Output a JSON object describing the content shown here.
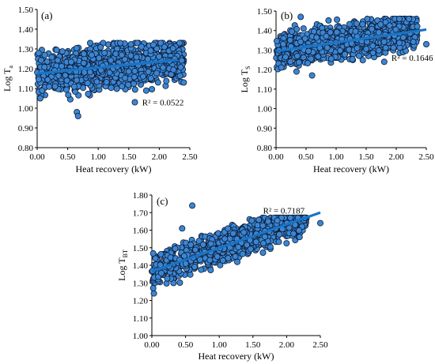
{
  "chart_data": [
    {
      "panel_label": "(a)",
      "type": "scatter",
      "xlabel": "Heat recovery (kW)",
      "ylabel": {
        "main": "Log T",
        "sub": "a"
      },
      "xlim": [
        0,
        2.5
      ],
      "ylim": [
        0.8,
        1.5
      ],
      "xticks": [
        "0.00",
        "0.50",
        "1.00",
        "1.50",
        "2.00",
        "2.50"
      ],
      "yticks": [
        "0.80",
        "0.90",
        "1.00",
        "1.10",
        "1.20",
        "1.30",
        "1.40",
        "1.50"
      ],
      "trendline": {
        "x": [
          0,
          2.3
        ],
        "y": [
          1.175,
          1.245
        ]
      },
      "r2_label": "R² = 0.0522",
      "r2_at": [
        1.72,
        1.015
      ],
      "series_spec": {
        "n": 950,
        "xmax": 2.4,
        "center_start": 1.175,
        "slope": 0.03,
        "spread": 0.055,
        "ymin": 1.02,
        "ymax": 1.33
      },
      "outliers": [
        [
          0.65,
          0.98
        ],
        [
          0.67,
          0.96
        ],
        [
          1.6,
          1.03
        ],
        [
          2.4,
          1.13
        ],
        [
          0.05,
          1.05
        ]
      ],
      "colors": {
        "point": "#3b86d4",
        "edge": "#0d1b33",
        "trend": "#1a74c5"
      }
    },
    {
      "panel_label": "(b)",
      "type": "scatter",
      "xlabel": "Heat recovery (kW)",
      "ylabel": {
        "main": "Log T",
        "sub": "S"
      },
      "xlim": [
        0,
        2.5
      ],
      "ylim": [
        0.8,
        1.5
      ],
      "xticks": [
        "0.00",
        "0.50",
        "1.00",
        "1.50",
        "2.00",
        "2.50"
      ],
      "yticks": [
        "0.80",
        "0.90",
        "1.00",
        "1.10",
        "1.20",
        "1.30",
        "1.40",
        "1.50"
      ],
      "trendline": {
        "x": [
          0,
          2.5
        ],
        "y": [
          1.295,
          1.405
        ]
      },
      "r2_label": "R² = 0.1646",
      "r2_at": [
        1.92,
        1.245
      ],
      "series_spec": {
        "n": 950,
        "xmax": 2.35,
        "center_start": 1.295,
        "slope": 0.044,
        "spread": 0.045,
        "ymin": 1.19,
        "ymax": 1.46
      },
      "outliers": [
        [
          2.5,
          1.33
        ],
        [
          1.8,
          1.24
        ],
        [
          0.6,
          1.17
        ],
        [
          0.41,
          1.47
        ]
      ],
      "colors": {
        "point": "#3b86d4",
        "edge": "#0d1b33",
        "trend": "#1a74c5"
      }
    },
    {
      "panel_label": "(c)",
      "type": "scatter",
      "xlabel": "Heat recovery (kW)",
      "ylabel": {
        "main": "Log T",
        "sub": "BT"
      },
      "xlim": [
        0,
        2.5
      ],
      "ylim": [
        1.0,
        1.8
      ],
      "xticks": [
        "0.00",
        "0.50",
        "1.00",
        "1.50",
        "2.00",
        "2.50"
      ],
      "yticks": [
        "1.00",
        "1.10",
        "1.20",
        "1.30",
        "1.40",
        "1.50",
        "1.60",
        "1.70",
        "1.80"
      ],
      "trendline": {
        "x": [
          0,
          2.5
        ],
        "y": [
          1.365,
          1.7
        ]
      },
      "r2_label": "R² = 0.7187",
      "r2_at": [
        1.65,
        1.695
      ],
      "series_spec": {
        "n": 900,
        "xmax": 2.3,
        "center_start": 1.365,
        "slope": 0.134,
        "spread": 0.045,
        "ymin": 1.23,
        "ymax": 1.67
      },
      "outliers": [
        [
          0.6,
          1.74
        ],
        [
          0.03,
          1.24
        ],
        [
          0.02,
          1.27
        ],
        [
          2.5,
          1.64
        ],
        [
          0.45,
          1.61
        ]
      ],
      "colors": {
        "point": "#3b86d4",
        "edge": "#0d1b33",
        "trend": "#1a74c5"
      }
    }
  ]
}
